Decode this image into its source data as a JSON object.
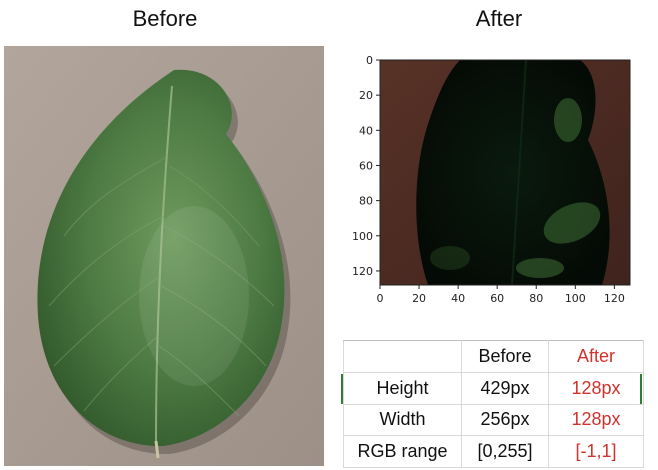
{
  "titles": {
    "before": "Before",
    "after": "After"
  },
  "plot": {
    "x_ticks": [
      "0",
      "20",
      "40",
      "60",
      "80",
      "100",
      "120"
    ],
    "y_ticks": [
      "0",
      "20",
      "40",
      "60",
      "80",
      "100",
      "120"
    ],
    "xlim": [
      0,
      128
    ],
    "ylim": [
      0,
      128
    ]
  },
  "table": {
    "headers": [
      "",
      "Before",
      "After"
    ],
    "rows": [
      {
        "label": "Height",
        "before": "429px",
        "after": "128px"
      },
      {
        "label": "Width",
        "before": "256px",
        "after": "128px"
      },
      {
        "label": "RGB range",
        "before": "[0,255]",
        "after": "[-1,1]"
      }
    ]
  },
  "colors": {
    "leaf": "#3f6a36",
    "background_board": "#a89b91",
    "after_value_red": "#d0332b"
  }
}
